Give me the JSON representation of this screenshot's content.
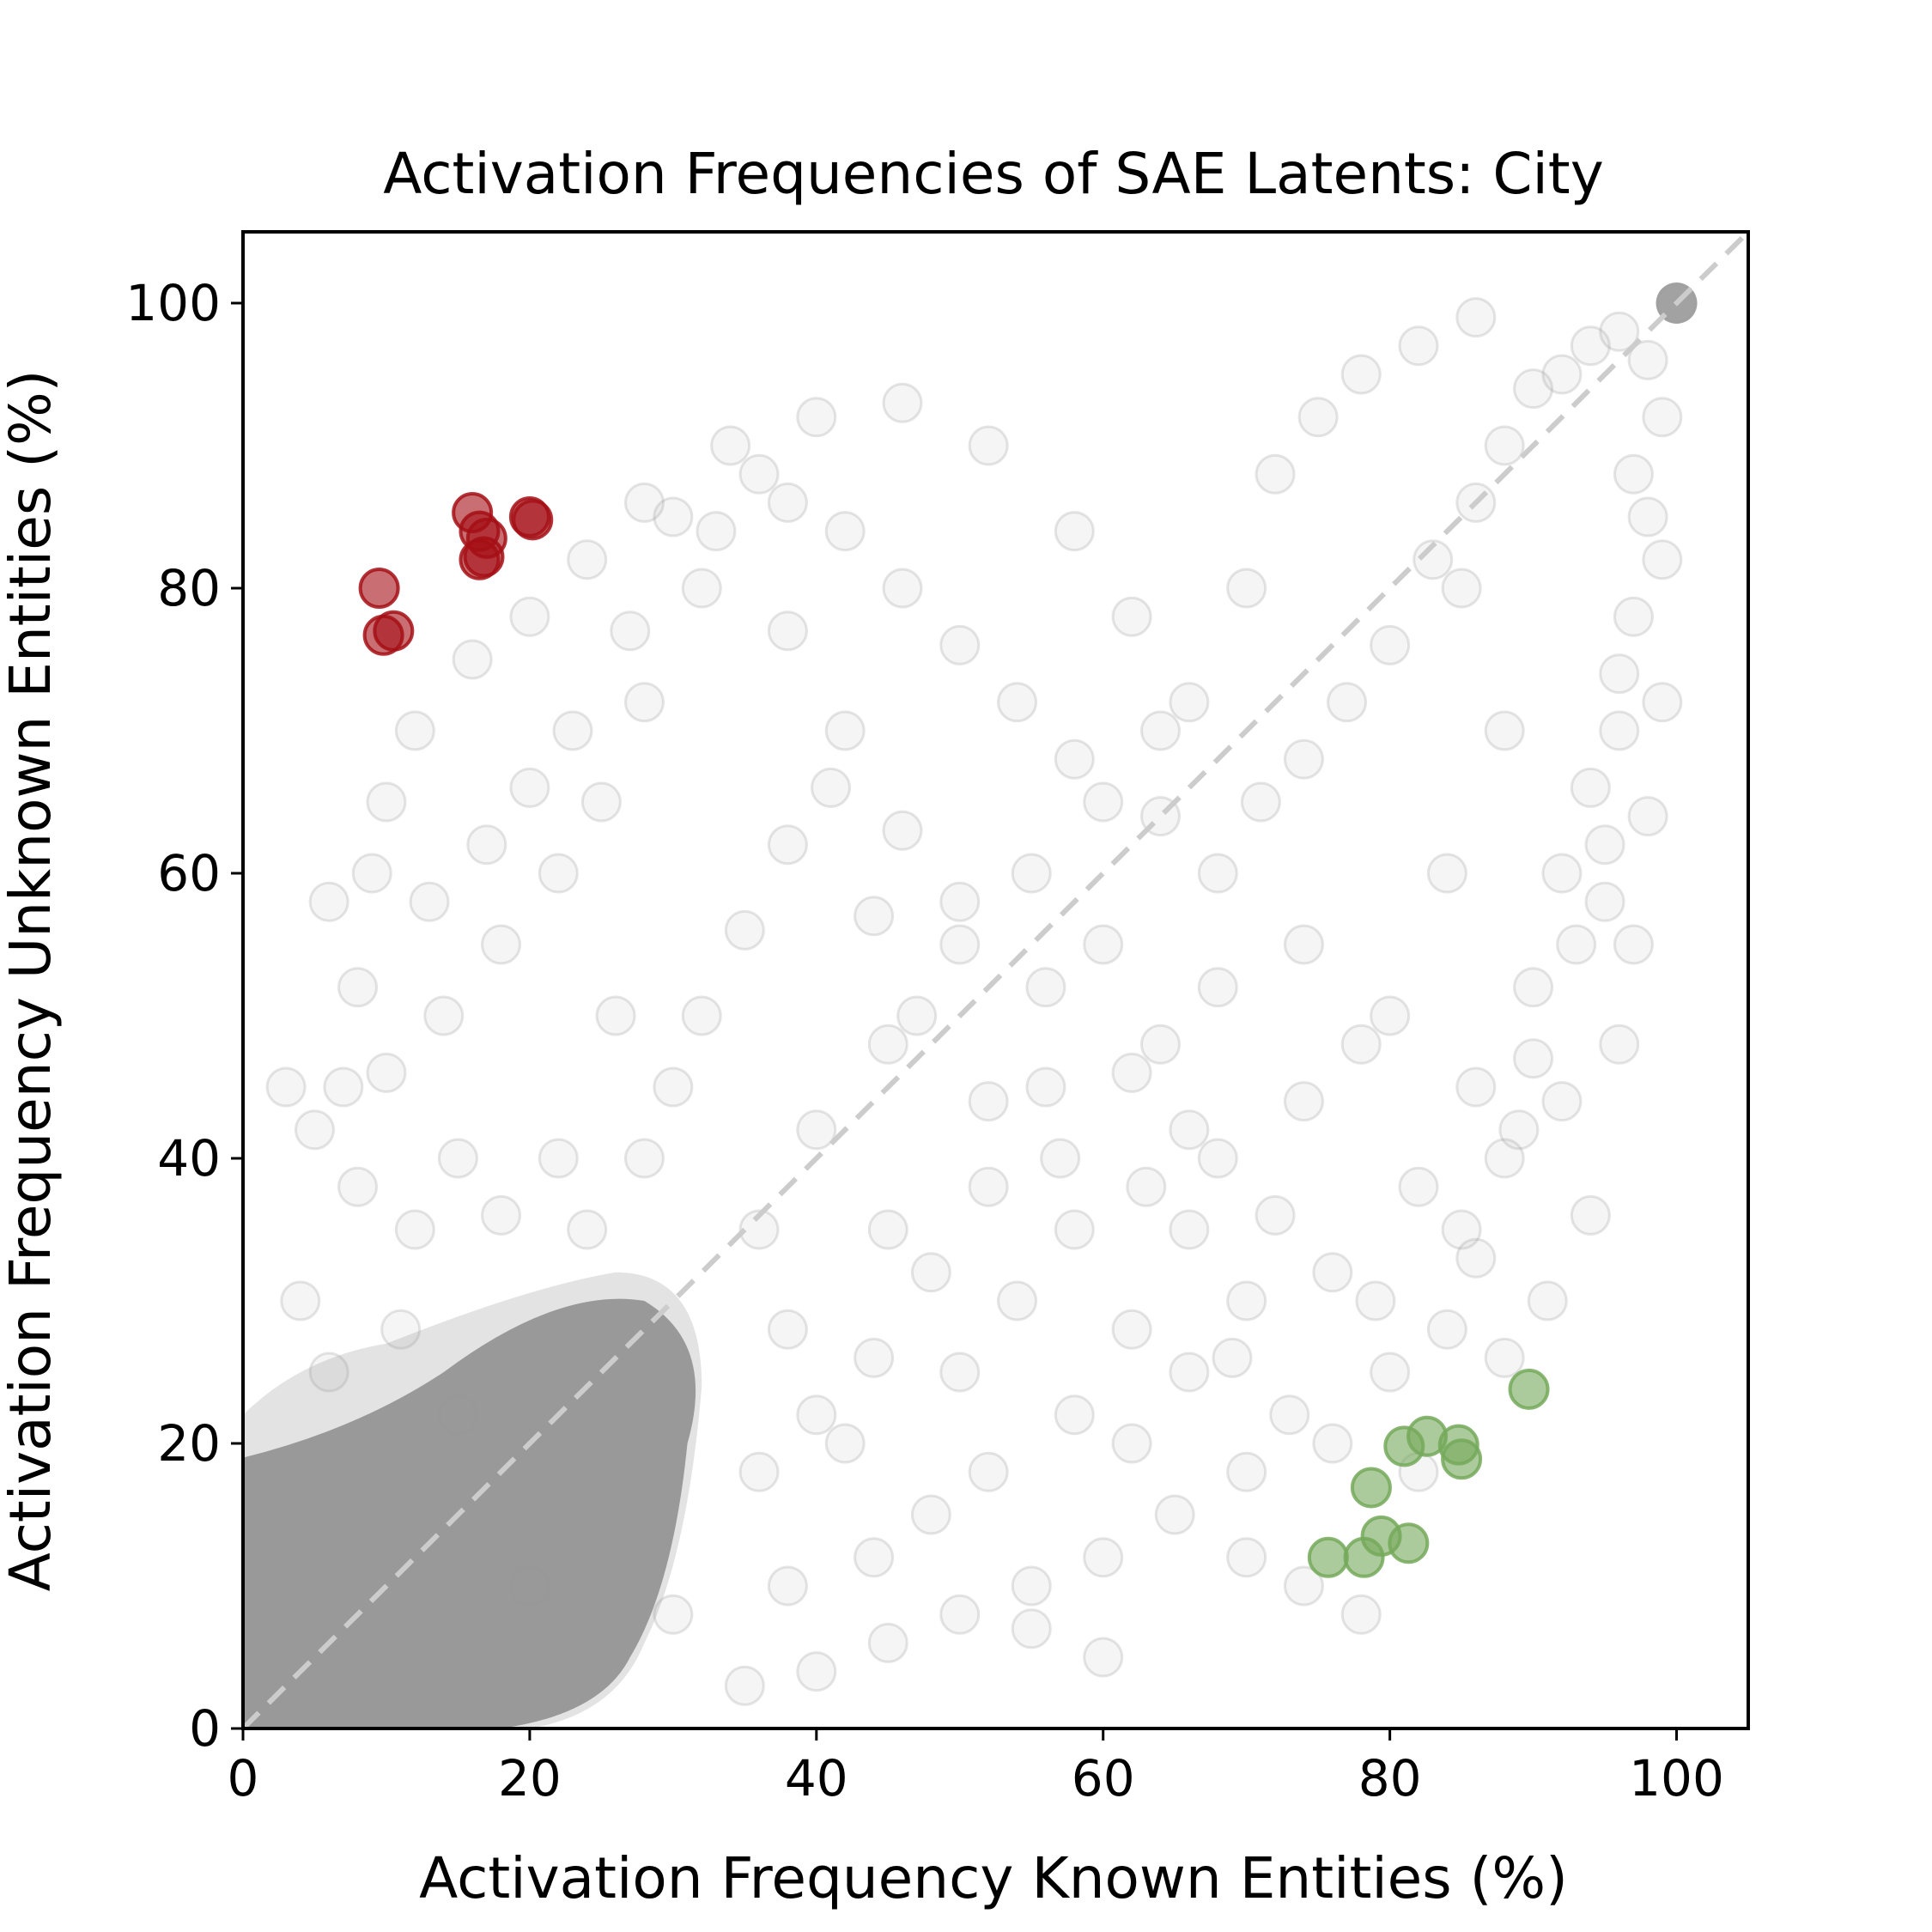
{
  "chart_data": {
    "type": "scatter",
    "title": "Activation Frequencies of SAE Latents: City",
    "xlabel": "Activation Frequency Known Entities (%)",
    "ylabel": "Activation Frequency Unknown Entities (%)",
    "xlim": [
      0,
      105
    ],
    "ylim": [
      0,
      105
    ],
    "xticks": [
      0,
      20,
      40,
      60,
      80,
      100
    ],
    "yticks": [
      0,
      20,
      40,
      60,
      80,
      100
    ],
    "grid": false,
    "reference_line": {
      "style": "dashed",
      "from": [
        0,
        0
      ],
      "to": [
        105,
        105
      ],
      "color": "#cccccc"
    },
    "colors": {
      "background_points": "#999999",
      "highlight_unknown": "#a50f15",
      "highlight_known": "#74a95a"
    },
    "series": [
      {
        "role": "all-latents",
        "color": "#999999",
        "alpha": 0.08,
        "dense_cluster": {
          "x_range": [
            0,
            32
          ],
          "y_range": [
            0,
            32
          ]
        },
        "points": [
          [
            100,
            100
          ],
          [
            85,
            80
          ],
          [
            99,
            92
          ],
          [
            98,
            85
          ],
          [
            97,
            78
          ],
          [
            96,
            70
          ],
          [
            95,
            62
          ],
          [
            93,
            55
          ],
          [
            90,
            47
          ],
          [
            88,
            40
          ],
          [
            86,
            33
          ],
          [
            84,
            28
          ],
          [
            80,
            25
          ],
          [
            76,
            20
          ],
          [
            70,
            18
          ],
          [
            65,
            15
          ],
          [
            60,
            12
          ],
          [
            55,
            10
          ],
          [
            50,
            8
          ],
          [
            45,
            6
          ],
          [
            40,
            4
          ],
          [
            35,
            3
          ],
          [
            60,
            5
          ],
          [
            55,
            7
          ],
          [
            48,
            15
          ],
          [
            42,
            20
          ],
          [
            38,
            28
          ],
          [
            36,
            35
          ],
          [
            40,
            42
          ],
          [
            45,
            48
          ],
          [
            50,
            55
          ],
          [
            55,
            60
          ],
          [
            60,
            65
          ],
          [
            64,
            70
          ],
          [
            66,
            72
          ],
          [
            70,
            80
          ],
          [
            72,
            88
          ],
          [
            75,
            92
          ],
          [
            78,
            95
          ],
          [
            82,
            97
          ],
          [
            86,
            99
          ],
          [
            62,
            78
          ],
          [
            58,
            84
          ],
          [
            52,
            90
          ],
          [
            46,
            93
          ],
          [
            40,
            92
          ],
          [
            36,
            88
          ],
          [
            32,
            80
          ],
          [
            28,
            72
          ],
          [
            25,
            65
          ],
          [
            22,
            60
          ],
          [
            18,
            55
          ],
          [
            14,
            50
          ],
          [
            10,
            46
          ],
          [
            8,
            52
          ],
          [
            6,
            58
          ],
          [
            10,
            65
          ],
          [
            12,
            70
          ],
          [
            16,
            75
          ],
          [
            20,
            78
          ],
          [
            24,
            82
          ],
          [
            28,
            86
          ],
          [
            33,
            84
          ],
          [
            38,
            77
          ],
          [
            42,
            70
          ],
          [
            46,
            63
          ],
          [
            50,
            58
          ],
          [
            56,
            52
          ],
          [
            62,
            46
          ],
          [
            68,
            40
          ],
          [
            72,
            36
          ],
          [
            76,
            32
          ],
          [
            82,
            38
          ],
          [
            86,
            45
          ],
          [
            90,
            52
          ],
          [
            92,
            60
          ],
          [
            94,
            66
          ],
          [
            80,
            50
          ],
          [
            74,
            55
          ],
          [
            68,
            60
          ],
          [
            64,
            64
          ],
          [
            60,
            55
          ],
          [
            56,
            45
          ],
          [
            52,
            38
          ],
          [
            48,
            32
          ],
          [
            44,
            26
          ],
          [
            40,
            22
          ],
          [
            36,
            18
          ],
          [
            50,
            25
          ],
          [
            54,
            30
          ],
          [
            58,
            35
          ],
          [
            62,
            28
          ],
          [
            66,
            25
          ],
          [
            70,
            30
          ],
          [
            74,
            44
          ],
          [
            78,
            48
          ],
          [
            84,
            60
          ],
          [
            88,
            70
          ],
          [
            66,
            42
          ],
          [
            70,
            12
          ],
          [
            74,
            10
          ],
          [
            78,
            8
          ],
          [
            62,
            20
          ],
          [
            58,
            22
          ],
          [
            45,
            35
          ],
          [
            30,
            45
          ],
          [
            26,
            50
          ],
          [
            22,
            40
          ],
          [
            18,
            36
          ],
          [
            15,
            40
          ],
          [
            12,
            35
          ],
          [
            8,
            38
          ],
          [
            5,
            42
          ],
          [
            4,
            30
          ],
          [
            3,
            45
          ],
          [
            6,
            25
          ],
          [
            20,
            10
          ],
          [
            30,
            8
          ],
          [
            38,
            10
          ],
          [
            44,
            12
          ],
          [
            52,
            18
          ],
          [
            66,
            35
          ],
          [
            82,
            18
          ],
          [
            88,
            26
          ],
          [
            91,
            30
          ],
          [
            94,
            36
          ],
          [
            96,
            48
          ],
          [
            97,
            55
          ],
          [
            98,
            64
          ],
          [
            99,
            72
          ],
          [
            99,
            82
          ],
          [
            98,
            96
          ],
          [
            96,
            98
          ],
          [
            94,
            97
          ],
          [
            92,
            95
          ],
          [
            90,
            94
          ],
          [
            88,
            90
          ],
          [
            86,
            86
          ],
          [
            83,
            82
          ],
          [
            80,
            76
          ],
          [
            77,
            72
          ],
          [
            74,
            68
          ],
          [
            71,
            65
          ],
          [
            68,
            52
          ],
          [
            64,
            48
          ],
          [
            58,
            68
          ],
          [
            54,
            72
          ],
          [
            50,
            76
          ],
          [
            46,
            80
          ],
          [
            42,
            84
          ],
          [
            38,
            86
          ],
          [
            34,
            90
          ],
          [
            30,
            85
          ],
          [
            27,
            77
          ],
          [
            23,
            70
          ],
          [
            20,
            66
          ],
          [
            17,
            62
          ],
          [
            13,
            58
          ],
          [
            9,
            60
          ],
          [
            7,
            45
          ],
          [
            11,
            28
          ],
          [
            15,
            22
          ],
          [
            24,
            35
          ],
          [
            28,
            40
          ],
          [
            32,
            50
          ],
          [
            35,
            56
          ],
          [
            38,
            62
          ],
          [
            41,
            66
          ],
          [
            44,
            57
          ],
          [
            47,
            50
          ],
          [
            52,
            44
          ],
          [
            57,
            40
          ],
          [
            63,
            38
          ],
          [
            69,
            26
          ],
          [
            73,
            22
          ],
          [
            79,
            30
          ],
          [
            85,
            35
          ],
          [
            89,
            42
          ],
          [
            92,
            44
          ],
          [
            95,
            58
          ],
          [
            96,
            74
          ],
          [
            97,
            88
          ]
        ]
      },
      {
        "role": "unknown-entity-latents",
        "color": "#a50f15",
        "alpha": 0.6,
        "points": [
          [
            16,
            85.3
          ],
          [
            20,
            85
          ],
          [
            20.2,
            84.8
          ],
          [
            16.5,
            84
          ],
          [
            17,
            83.5
          ],
          [
            16.8,
            82.2
          ],
          [
            16.5,
            82
          ],
          [
            9.5,
            80
          ],
          [
            10.5,
            77
          ],
          [
            9.8,
            76.7
          ]
        ]
      },
      {
        "role": "known-entity-latents",
        "color": "#74a95a",
        "alpha": 0.6,
        "points": [
          [
            89.7,
            23.8
          ],
          [
            82.6,
            20.5
          ],
          [
            81,
            19.8
          ],
          [
            84.8,
            19.9
          ],
          [
            85,
            18.9
          ],
          [
            78.7,
            16.9
          ],
          [
            79.4,
            13.5
          ],
          [
            81.3,
            13
          ],
          [
            75.7,
            12
          ],
          [
            78.2,
            12
          ]
        ]
      }
    ]
  }
}
